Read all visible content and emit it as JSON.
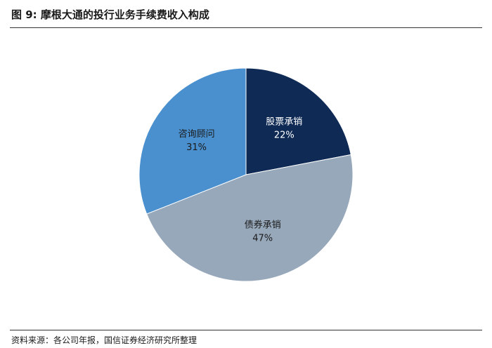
{
  "header": {
    "figure_number": "图 9:",
    "title": "摩根大通的投行业务手续费收入构成"
  },
  "chart_data": {
    "type": "pie",
    "title": "摩根大通的投行业务手续费收入构成",
    "unit": "%",
    "start_angle_deg": 0,
    "direction": "clockwise",
    "slices": [
      {
        "label": "股票承销",
        "value": 22,
        "display": "22%",
        "color": "#0e2a55",
        "text_color": "#ffffff"
      },
      {
        "label": "债券承销",
        "value": 47,
        "display": "47%",
        "color": "#97a8ba",
        "text_color": "#1a1a1a"
      },
      {
        "label": "咨询顾问",
        "value": 31,
        "display": "31%",
        "color": "#4a90cf",
        "text_color": "#1a1a1a"
      }
    ]
  },
  "footer": {
    "source": "资料来源：各公司年报，国信证券经济研究所整理"
  }
}
